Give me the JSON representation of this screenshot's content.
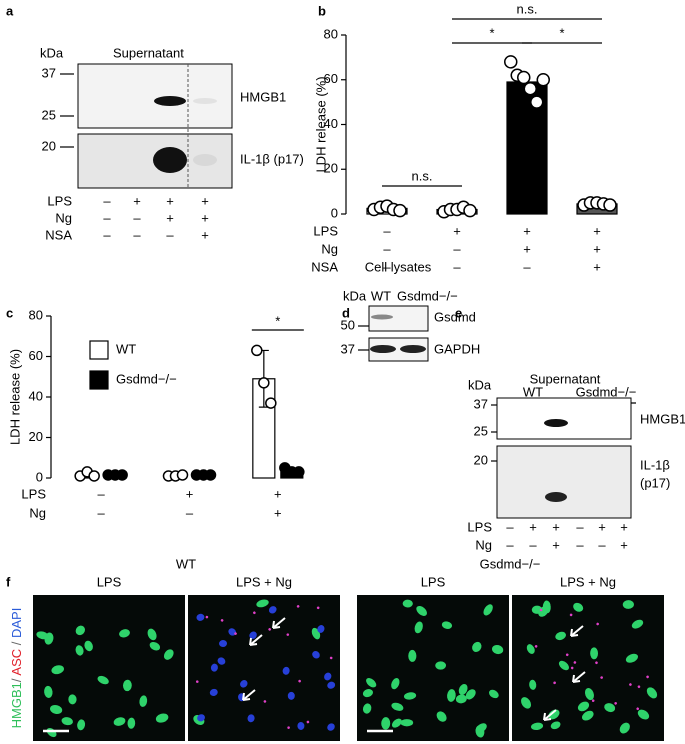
{
  "figure": {
    "panel_letters": [
      "a",
      "b",
      "c",
      "d",
      "e",
      "f"
    ],
    "blot_a": {
      "mw_unit": "kDa",
      "title": "Supernatant",
      "markers": [
        "37",
        "25",
        "20"
      ],
      "bands": [
        "HMGB1",
        "IL-1β (p17)"
      ],
      "rows": [
        {
          "label": "LPS",
          "signs": [
            "–",
            "+",
            "+",
            "+"
          ]
        },
        {
          "label": "Ng",
          "signs": [
            "–",
            "–",
            "+",
            "+"
          ]
        },
        {
          "label": "NSA",
          "signs": [
            "–",
            "–",
            "–",
            "+"
          ]
        }
      ]
    },
    "blot_d": {
      "title": "Cell lysates",
      "mw_unit": "kDa",
      "lanes": [
        "WT",
        "Gsdmd−/−"
      ],
      "markers": [
        "50",
        "37"
      ],
      "bands": [
        "Gsdmd",
        "GAPDH"
      ]
    },
    "blot_e": {
      "title": "Supernatant",
      "mw_unit": "kDa",
      "groups": [
        "WT",
        "Gsdmd−/−"
      ],
      "markers": [
        "37",
        "25",
        "20"
      ],
      "bands": [
        "HMGB1",
        "IL-1β",
        "(p17)"
      ],
      "rows": [
        {
          "label": "LPS",
          "signs": [
            "–",
            "+",
            "+",
            "–",
            "+",
            "+"
          ]
        },
        {
          "label": "Ng",
          "signs": [
            "–",
            "–",
            "+",
            "–",
            "–",
            "+"
          ]
        }
      ]
    },
    "micrographs": {
      "groups": [
        "WT",
        "Gsdmd−/−"
      ],
      "conditions": [
        "LPS",
        "LPS + Ng",
        "LPS",
        "LPS + Ng"
      ],
      "stain_labels": [
        "HMGB1",
        "/ ",
        "ASC",
        " / ",
        "DAPI"
      ]
    }
  },
  "chart_data": [
    {
      "type": "bar",
      "ylabel": "LDH release (%)",
      "ylim": [
        0,
        80
      ],
      "yticks": [
        0,
        20,
        40,
        60,
        80
      ],
      "categories": [
        null,
        null,
        null,
        null
      ],
      "values": [
        2.5,
        2,
        59,
        4.5
      ],
      "colors": [
        "#ffffff",
        "#ffffff",
        "#000000",
        "#555555"
      ],
      "points": [
        [
          2,
          3,
          3.5,
          2,
          1.5
        ],
        [
          1,
          2,
          2,
          3,
          1.5
        ],
        [
          68,
          62,
          61,
          56,
          50,
          60
        ],
        [
          4,
          5,
          5,
          4.5,
          4
        ]
      ],
      "conditions": [
        {
          "label": "LPS",
          "signs": [
            "–",
            "+",
            "+",
            "+"
          ]
        },
        {
          "label": "Ng",
          "signs": [
            "–",
            "–",
            "+",
            "+"
          ]
        },
        {
          "label": "NSA",
          "signs": [
            "–",
            "–",
            "–",
            "+"
          ]
        }
      ],
      "annotations": [
        "n.s.",
        "*",
        "*",
        "n.s."
      ]
    },
    {
      "type": "grouped_bar",
      "ylabel": "LDH release (%)",
      "ylim": [
        0,
        80
      ],
      "yticks": [
        0,
        20,
        40,
        60,
        80
      ],
      "categories": [
        null,
        null,
        null
      ],
      "series": [
        {
          "name": "WT",
          "color": "#ffffff",
          "values": [
            2,
            1,
            49
          ],
          "errors": [
            null,
            null,
            14
          ],
          "points": [
            [
              1,
              3,
              1
            ],
            [
              1,
              1,
              1.5
            ],
            [
              63,
              47,
              37
            ]
          ]
        },
        {
          "name": "Gsdmd−/−",
          "color": "#000000",
          "values": [
            1.5,
            1.5,
            3
          ],
          "errors": [
            null,
            null,
            null
          ],
          "points": [
            [
              1.5,
              1.5,
              1.5
            ],
            [
              1.5,
              1.5,
              1.5
            ],
            [
              5,
              3,
              3
            ]
          ]
        }
      ],
      "conditions": [
        {
          "label": "LPS",
          "signs": [
            "–",
            "+",
            "+"
          ]
        },
        {
          "label": "Ng",
          "signs": [
            "–",
            "–",
            "+"
          ]
        }
      ],
      "annotations": [
        "*"
      ]
    }
  ]
}
